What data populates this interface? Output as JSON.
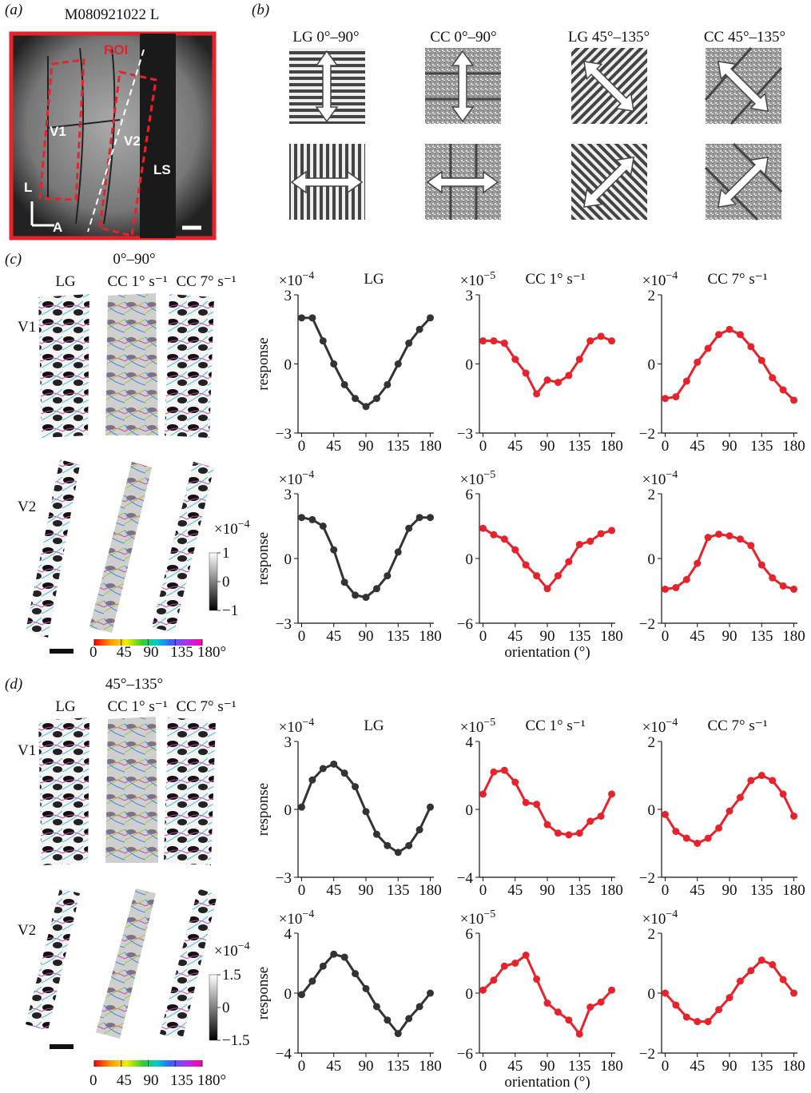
{
  "panel_labels": [
    "(a)",
    "(b)",
    "(c)",
    "(d)"
  ],
  "panel_a": {
    "title": "M080921022 L",
    "labels": [
      "ROI",
      "V1",
      "V2",
      "LS",
      "L",
      "A"
    ]
  },
  "panel_b": {
    "titles": [
      "LG 0°–90°",
      "CC 0°–90°",
      "LG 45°–135°",
      "CC 45°–135°"
    ]
  },
  "panel_c": {
    "condition": "0°–90°",
    "map_columns": [
      "LG",
      "CC 1° s⁻¹",
      "CC 7° s⁻¹"
    ],
    "map_rows": [
      "V1",
      "V2"
    ],
    "scale": {
      "base": "×10",
      "exponent": "−4"
    },
    "scale_ticks": [
      1,
      0,
      {
        "value": -1,
        "label": "−1"
      }
    ],
    "orientation_ticks": [
      0,
      45,
      90,
      135,
      {
        "value": 180,
        "label": "180°"
      }
    ]
  },
  "panel_d": {
    "condition": "45°–135°",
    "map_columns": [
      "LG",
      "CC 1° s⁻¹",
      "CC 7° s⁻¹"
    ],
    "map_rows": [
      "V1",
      "V2"
    ],
    "scale": {
      "base": "×10",
      "exponent": "−4"
    },
    "scale_ticks": [
      1.5,
      0,
      {
        "value": -1.5,
        "label": "−1.5"
      }
    ],
    "orientation_ticks": [
      0,
      45,
      90,
      135,
      {
        "value": 180,
        "label": "180°"
      }
    ]
  },
  "chart_data": [
    {
      "type": "line",
      "title": "LG",
      "y_multiplier": {
        "base": "×10",
        "exponent": "−4"
      },
      "ylabel": "response",
      "color": "#333333",
      "x": [
        0,
        15,
        30,
        45,
        60,
        75,
        90,
        105,
        120,
        135,
        150,
        165,
        180
      ],
      "values": [
        2.0,
        2.0,
        1.0,
        0.0,
        -0.9,
        -1.5,
        -1.85,
        -1.5,
        -0.9,
        0.0,
        0.9,
        1.5,
        2.0
      ],
      "xlim": [
        -5,
        185
      ],
      "ylim": [
        -3,
        3
      ],
      "xticks": [
        0,
        45,
        90,
        135,
        180
      ],
      "yticks": [
        3,
        0,
        {
          "value": -3,
          "label": "−3"
        }
      ]
    },
    {
      "type": "line",
      "title": "CC 1° s⁻¹",
      "y_multiplier": {
        "base": "×10",
        "exponent": "−5"
      },
      "color": "#e8222b",
      "x": [
        0,
        15,
        30,
        45,
        60,
        75,
        90,
        105,
        120,
        135,
        150,
        165,
        180
      ],
      "values": [
        1.0,
        1.0,
        0.9,
        0.2,
        -0.4,
        -1.3,
        -0.7,
        -0.8,
        -0.5,
        0.2,
        1.0,
        1.2,
        1.0
      ],
      "xlim": [
        -5,
        185
      ],
      "ylim": [
        -3,
        3
      ],
      "xticks": [
        0,
        45,
        90,
        135,
        180
      ],
      "yticks": [
        3,
        0,
        {
          "value": -3,
          "label": "−3"
        }
      ]
    },
    {
      "type": "line",
      "title": "CC 7° s⁻¹",
      "y_multiplier": {
        "base": "×10",
        "exponent": "−4"
      },
      "color": "#e8222b",
      "x": [
        0,
        15,
        30,
        45,
        60,
        75,
        90,
        105,
        120,
        135,
        150,
        165,
        180
      ],
      "values": [
        -1.0,
        -0.95,
        -0.5,
        0.05,
        0.45,
        0.85,
        1.0,
        0.85,
        0.5,
        0.1,
        -0.4,
        -0.75,
        -1.05
      ],
      "xlim": [
        -5,
        185
      ],
      "ylim": [
        -2,
        2
      ],
      "xticks": [
        0,
        45,
        90,
        135,
        180
      ],
      "yticks": [
        2,
        0,
        {
          "value": -2,
          "label": "−2"
        }
      ]
    },
    {
      "type": "line",
      "y_multiplier": {
        "base": "×10",
        "exponent": "−4"
      },
      "ylabel": "response",
      "color": "#333333",
      "x": [
        0,
        15,
        30,
        45,
        60,
        75,
        90,
        105,
        120,
        135,
        150,
        165,
        180
      ],
      "values": [
        1.9,
        1.8,
        1.5,
        0.4,
        -1.1,
        -1.7,
        -1.8,
        -1.4,
        -0.8,
        0.3,
        1.4,
        1.9,
        1.9
      ],
      "xlim": [
        -5,
        185
      ],
      "ylim": [
        -3,
        3
      ],
      "xticks": [
        0,
        45,
        90,
        135,
        180
      ],
      "yticks": [
        3,
        0,
        {
          "value": -3,
          "label": "−3"
        }
      ]
    },
    {
      "type": "line",
      "y_multiplier": {
        "base": "×10",
        "exponent": "−5"
      },
      "xlabel": "orientation (°)",
      "color": "#e8222b",
      "x": [
        0,
        15,
        30,
        45,
        60,
        75,
        90,
        105,
        120,
        135,
        150,
        165,
        180
      ],
      "values": [
        2.8,
        2.2,
        1.8,
        0.8,
        -0.6,
        -1.6,
        -2.8,
        -1.6,
        -0.3,
        1.3,
        1.6,
        2.3,
        2.6
      ],
      "xlim": [
        -5,
        185
      ],
      "ylim": [
        -6,
        6
      ],
      "xticks": [
        0,
        45,
        90,
        135,
        180
      ],
      "yticks": [
        6,
        0,
        {
          "value": -6,
          "label": "−6"
        }
      ]
    },
    {
      "type": "line",
      "y_multiplier": {
        "base": "×10",
        "exponent": "−4"
      },
      "color": "#e8222b",
      "x": [
        0,
        15,
        30,
        45,
        60,
        75,
        90,
        105,
        120,
        135,
        150,
        165,
        180
      ],
      "values": [
        -0.95,
        -0.9,
        -0.65,
        -0.15,
        0.65,
        0.75,
        0.7,
        0.6,
        0.4,
        -0.2,
        -0.6,
        -0.85,
        -0.95
      ],
      "xlim": [
        -5,
        185
      ],
      "ylim": [
        -2,
        2
      ],
      "xticks": [
        0,
        45,
        90,
        135,
        180
      ],
      "yticks": [
        2,
        0,
        {
          "value": -2,
          "label": "−2"
        }
      ]
    },
    {
      "type": "line",
      "title": "LG",
      "y_multiplier": {
        "base": "×10",
        "exponent": "−4"
      },
      "ylabel": "response",
      "color": "#333333",
      "x": [
        0,
        15,
        30,
        45,
        60,
        75,
        90,
        105,
        120,
        135,
        150,
        165,
        180
      ],
      "values": [
        0.1,
        1.3,
        1.8,
        2.0,
        1.6,
        1.0,
        -0.1,
        -1.1,
        -1.6,
        -1.9,
        -1.6,
        -0.9,
        0.1
      ],
      "xlim": [
        -5,
        185
      ],
      "ylim": [
        -3,
        3
      ],
      "xticks": [
        0,
        45,
        90,
        135,
        180
      ],
      "yticks": [
        3,
        0,
        {
          "value": -3,
          "label": "−3"
        }
      ]
    },
    {
      "type": "line",
      "title": "CC 1° s⁻¹",
      "y_multiplier": {
        "base": "×10",
        "exponent": "−5"
      },
      "color": "#e8222b",
      "x": [
        0,
        15,
        30,
        45,
        60,
        75,
        90,
        105,
        120,
        135,
        150,
        165,
        180
      ],
      "values": [
        0.9,
        2.2,
        2.3,
        1.6,
        0.4,
        0.3,
        -0.9,
        -1.4,
        -1.5,
        -1.4,
        -0.7,
        -0.4,
        0.9
      ],
      "xlim": [
        -5,
        185
      ],
      "ylim": [
        -4,
        4
      ],
      "xticks": [
        0,
        45,
        90,
        135,
        180
      ],
      "yticks": [
        4,
        0,
        {
          "value": -4,
          "label": "−4"
        }
      ]
    },
    {
      "type": "line",
      "title": "CC 7° s⁻¹",
      "y_multiplier": {
        "base": "×10",
        "exponent": "−4"
      },
      "color": "#e8222b",
      "x": [
        0,
        15,
        30,
        45,
        60,
        75,
        90,
        105,
        120,
        135,
        150,
        165,
        180
      ],
      "values": [
        -0.15,
        -0.65,
        -0.85,
        -1.0,
        -0.85,
        -0.55,
        -0.05,
        0.35,
        0.85,
        1.0,
        0.85,
        0.45,
        -0.2
      ],
      "xlim": [
        -5,
        185
      ],
      "ylim": [
        -2,
        2
      ],
      "xticks": [
        0,
        45,
        90,
        135,
        180
      ],
      "yticks": [
        2,
        0,
        {
          "value": -2,
          "label": "−2"
        }
      ]
    },
    {
      "type": "line",
      "y_multiplier": {
        "base": "×10",
        "exponent": "−4"
      },
      "ylabel": "response",
      "color": "#333333",
      "x": [
        0,
        15,
        30,
        45,
        60,
        75,
        90,
        105,
        120,
        135,
        150,
        165,
        180
      ],
      "values": [
        -0.1,
        0.8,
        1.8,
        2.6,
        2.4,
        1.3,
        0.3,
        -0.9,
        -1.8,
        -2.7,
        -1.7,
        -0.9,
        0.0
      ],
      "xlim": [
        -5,
        185
      ],
      "ylim": [
        -4,
        4
      ],
      "xticks": [
        0,
        45,
        90,
        135,
        180
      ],
      "yticks": [
        4,
        0,
        {
          "value": -4,
          "label": "−4"
        }
      ]
    },
    {
      "type": "line",
      "y_multiplier": {
        "base": "×10",
        "exponent": "−5"
      },
      "xlabel": "orientation (°)",
      "color": "#e8222b",
      "x": [
        0,
        15,
        30,
        45,
        60,
        75,
        90,
        105,
        120,
        135,
        150,
        165,
        180
      ],
      "values": [
        0.3,
        1.3,
        2.7,
        3.0,
        3.8,
        1.4,
        -1.0,
        -1.9,
        -2.7,
        -4.1,
        -1.4,
        -0.9,
        0.3
      ],
      "xlim": [
        -5,
        185
      ],
      "ylim": [
        -6,
        6
      ],
      "xticks": [
        0,
        45,
        90,
        135,
        180
      ],
      "yticks": [
        6,
        0,
        {
          "value": -6,
          "label": "−6"
        }
      ]
    },
    {
      "type": "line",
      "y_multiplier": {
        "base": "×10",
        "exponent": "−4"
      },
      "color": "#e8222b",
      "x": [
        0,
        15,
        30,
        45,
        60,
        75,
        90,
        105,
        120,
        135,
        150,
        165,
        180
      ],
      "values": [
        0.0,
        -0.4,
        -0.8,
        -0.95,
        -0.95,
        -0.55,
        -0.15,
        0.4,
        0.75,
        1.1,
        0.95,
        0.45,
        0.0
      ],
      "xlim": [
        -5,
        185
      ],
      "ylim": [
        -2,
        2
      ],
      "xticks": [
        0,
        45,
        90,
        135,
        180
      ],
      "yticks": [
        2,
        0,
        {
          "value": -2,
          "label": "−2"
        }
      ]
    }
  ]
}
